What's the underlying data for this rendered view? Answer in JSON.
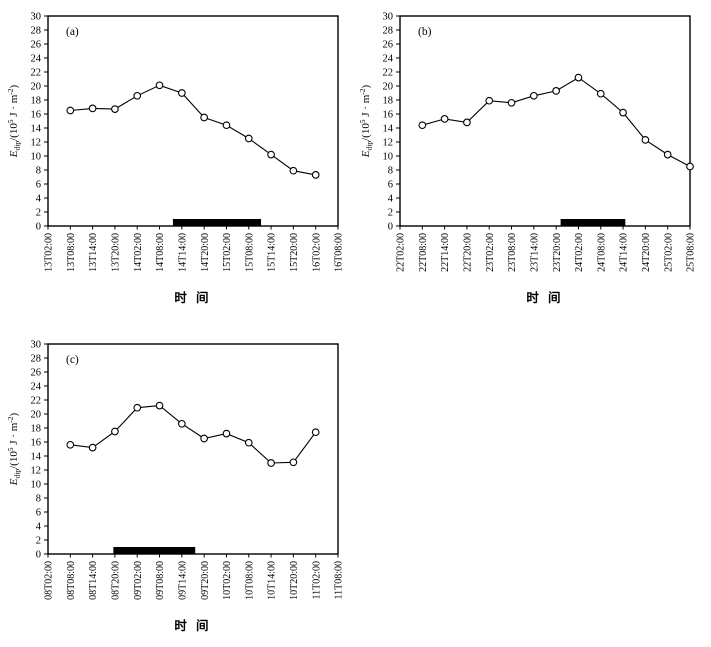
{
  "figure": {
    "background_color": "#ffffff",
    "ink_color": "#000000",
    "marker_fill": "#ffffff",
    "event_bar_color": "#000000"
  },
  "chart_data": [
    {
      "id": "a",
      "type": "line",
      "panel_label": "(a)",
      "xlabel": "时 间",
      "ylabel_parts": [
        {
          "text": "E",
          "style": "italic"
        },
        {
          "text": "dip",
          "style": "sub"
        },
        {
          "text": "/(10",
          "style": "normal"
        },
        {
          "text": "5",
          "style": "sup"
        },
        {
          "text": " J · m",
          "style": "normal"
        },
        {
          "text": "-2",
          "style": "sup"
        },
        {
          "text": ")",
          "style": "normal"
        }
      ],
      "ylim": [
        0,
        30
      ],
      "ytick_step": 2,
      "grid": false,
      "legend": "none",
      "categories": [
        "13T02:00",
        "13T08:00",
        "13T14:00",
        "13T20:00",
        "14T02:00",
        "14T08:00",
        "14T14:00",
        "14T20:00",
        "15T02:00",
        "15T08:00",
        "15T14:00",
        "15T20:00",
        "16T02:00",
        "16T08:00"
      ],
      "x_start_index": 1,
      "values": [
        16.5,
        16.8,
        16.7,
        18.6,
        20.1,
        19.0,
        15.5,
        14.4,
        12.5,
        10.2,
        7.9,
        7.3
      ],
      "event_bar": {
        "x_from": 5.6,
        "x_to": 9.55,
        "height_value": 1.0
      }
    },
    {
      "id": "b",
      "type": "line",
      "panel_label": "(b)",
      "xlabel": "时 间",
      "ylabel_parts": [
        {
          "text": "E",
          "style": "italic"
        },
        {
          "text": "dip",
          "style": "sub"
        },
        {
          "text": "/(10",
          "style": "normal"
        },
        {
          "text": "5",
          "style": "sup"
        },
        {
          "text": " J · m",
          "style": "normal"
        },
        {
          "text": "-2",
          "style": "sup"
        },
        {
          "text": ")",
          "style": "normal"
        }
      ],
      "ylim": [
        0,
        30
      ],
      "ytick_step": 2,
      "grid": false,
      "legend": "none",
      "categories": [
        "22T02:00",
        "22T08:00",
        "22T14:00",
        "22T20:00",
        "23T02:00",
        "23T08:00",
        "23T14:00",
        "23T20:00",
        "24T02:00",
        "24T08:00",
        "24T14:00",
        "24T20:00",
        "25T02:00",
        "25T08:00"
      ],
      "x_start_index": 1,
      "values": [
        14.4,
        15.3,
        14.8,
        17.9,
        17.6,
        18.6,
        19.3,
        21.2,
        18.9,
        16.2,
        12.3,
        10.2,
        8.5
      ],
      "event_bar": {
        "x_from": 7.2,
        "x_to": 10.1,
        "height_value": 1.0
      }
    },
    {
      "id": "c",
      "type": "line",
      "panel_label": "(c)",
      "xlabel": "时 间",
      "ylabel_parts": [
        {
          "text": "E",
          "style": "italic"
        },
        {
          "text": "dip",
          "style": "sub"
        },
        {
          "text": "/(10",
          "style": "normal"
        },
        {
          "text": "5",
          "style": "sup"
        },
        {
          "text": " J · m",
          "style": "normal"
        },
        {
          "text": "-2",
          "style": "sup"
        },
        {
          "text": ")",
          "style": "normal"
        }
      ],
      "ylim": [
        0,
        30
      ],
      "ytick_step": 2,
      "grid": false,
      "legend": "none",
      "categories": [
        "08T02:00",
        "08T08:00",
        "08T14:00",
        "08T20:00",
        "09T02:00",
        "09T08:00",
        "09T14:00",
        "09T20:00",
        "10T02:00",
        "10T08:00",
        "10T14:00",
        "10T20:00",
        "11T02:00",
        "11T08:00"
      ],
      "x_start_index": 1,
      "values": [
        15.6,
        15.2,
        17.5,
        20.9,
        21.2,
        18.6,
        16.5,
        17.2,
        15.9,
        13.0,
        13.1,
        17.4
      ],
      "event_bar": {
        "x_from": 2.93,
        "x_to": 6.6,
        "height_value": 1.0
      }
    }
  ]
}
